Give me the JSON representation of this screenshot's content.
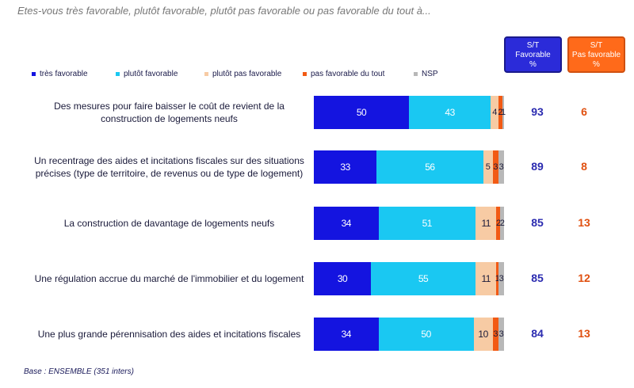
{
  "title": "Etes-vous très favorable, plutôt favorable, plutôt pas favorable ou pas favorable du tout à...",
  "header": {
    "favorable": [
      "S/T",
      "Favorable",
      "%"
    ],
    "unfavorable": [
      "S/T",
      "Pas favorable",
      "%"
    ],
    "favorable_color": "#2b2bd9",
    "unfavorable_color": "#ff6a1a"
  },
  "base": "Base : ENSEMBLE (351 inters)",
  "chart_data": {
    "type": "bar",
    "orientation": "horizontal",
    "stacked": true,
    "xlim": [
      0,
      100
    ],
    "legend_position": "top",
    "categories": [
      "Des mesures pour faire baisser le coût de revient de la construction de logements neufs",
      "Un recentrage des aides et incitations fiscales sur des situations précises (type de territoire, de revenus ou de type de logement)",
      "La construction de davantage de logements neufs",
      "Une régulation accrue du marché de l'immobilier et du logement",
      "Une plus grande pérennisation des aides et incitations fiscales"
    ],
    "series": [
      {
        "name": "très favorable",
        "color": "#1414e0",
        "label_color": "#ffffff",
        "values": [
          50,
          33,
          34,
          30,
          34
        ]
      },
      {
        "name": "plutôt favorable",
        "color": "#1ac8f2",
        "label_color": "#ffffff",
        "values": [
          43,
          56,
          51,
          55,
          50
        ]
      },
      {
        "name": "plutôt pas favorable",
        "color": "#f7cba4",
        "label_color": "#1a1a3a",
        "values": [
          4,
          5,
          11,
          11,
          10
        ]
      },
      {
        "name": "pas favorable du tout",
        "color": "#f25a14",
        "label_color": "#1a1a3a",
        "values": [
          2,
          3,
          2,
          1,
          3
        ]
      },
      {
        "name": "NSP",
        "color": "#b8b8b8",
        "label_color": "#1a1a3a",
        "values": [
          1,
          3,
          2,
          3,
          3
        ]
      }
    ],
    "totals": {
      "favorable": [
        93,
        89,
        85,
        85,
        84
      ],
      "unfavorable": [
        6,
        8,
        13,
        12,
        13
      ]
    }
  }
}
